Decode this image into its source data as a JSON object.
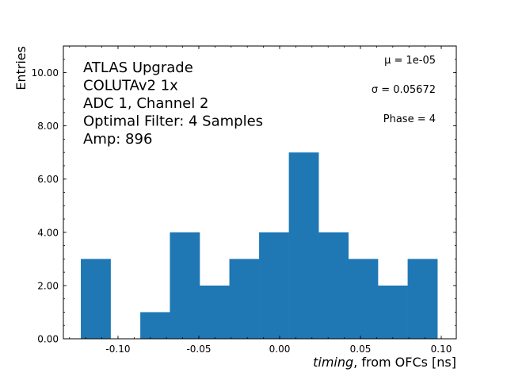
{
  "chart_data": {
    "type": "bar",
    "subtype": "histogram",
    "bin_edges": [
      -0.123,
      -0.1046,
      -0.0862,
      -0.0679,
      -0.0495,
      -0.0311,
      -0.0127,
      0.0057,
      0.0241,
      0.0425,
      0.0608,
      0.0792,
      0.0976
    ],
    "values": [
      3,
      0,
      1,
      4,
      2,
      3,
      4,
      7,
      4,
      3,
      2,
      3
    ],
    "bar_color": "#1f77b4",
    "xlabel_italic": "timing",
    "xlabel_rest": ", from OFCs [ns]",
    "ylabel": "Entries",
    "xlim": [
      -0.1338,
      0.1093
    ],
    "ylim": [
      0,
      11
    ],
    "xticks": [
      -0.1,
      -0.05,
      0.0,
      0.05,
      0.1
    ],
    "xtick_labels": [
      "-0.10",
      "-0.05",
      "0.00",
      "0.05",
      "0.10"
    ],
    "yticks": [
      0,
      2,
      4,
      6,
      8,
      10
    ],
    "ytick_labels": [
      "0.00",
      "2.00",
      "4.00",
      "6.00",
      "8.00",
      "10.00"
    ],
    "grid": false,
    "annotations_left": [
      "ATLAS Upgrade",
      "COLUTAv2 1x",
      "ADC 1, Channel 2",
      "Optimal Filter: 4 Samples",
      "Amp: 896"
    ],
    "annotations_right": [
      "μ = 1e-05",
      "σ = 0.05672",
      "Phase = 4"
    ]
  }
}
